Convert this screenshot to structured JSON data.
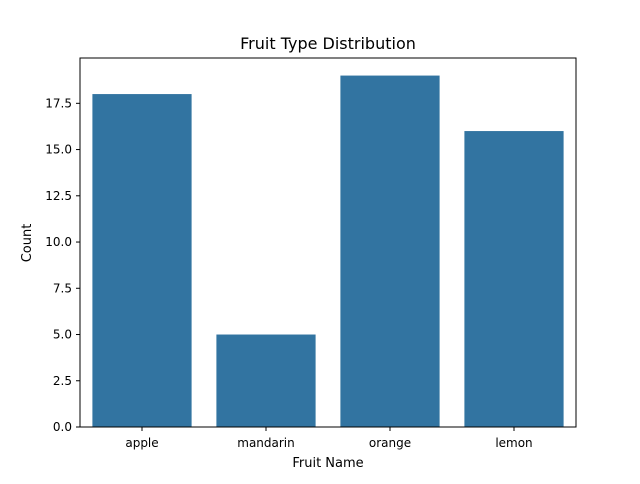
{
  "chart_data": {
    "type": "bar",
    "title": "Fruit Type Distribution",
    "xlabel": "Fruit Name",
    "ylabel": "Count",
    "categories": [
      "apple",
      "mandarin",
      "orange",
      "lemon"
    ],
    "values": [
      18,
      5,
      19,
      16
    ],
    "ylim": [
      0,
      19.95
    ],
    "yticks": [
      "0.0",
      "2.5",
      "5.0",
      "7.5",
      "10.0",
      "12.5",
      "15.0",
      "17.5"
    ],
    "bar_color": "#3274a1",
    "grid": false,
    "legend": "none"
  }
}
